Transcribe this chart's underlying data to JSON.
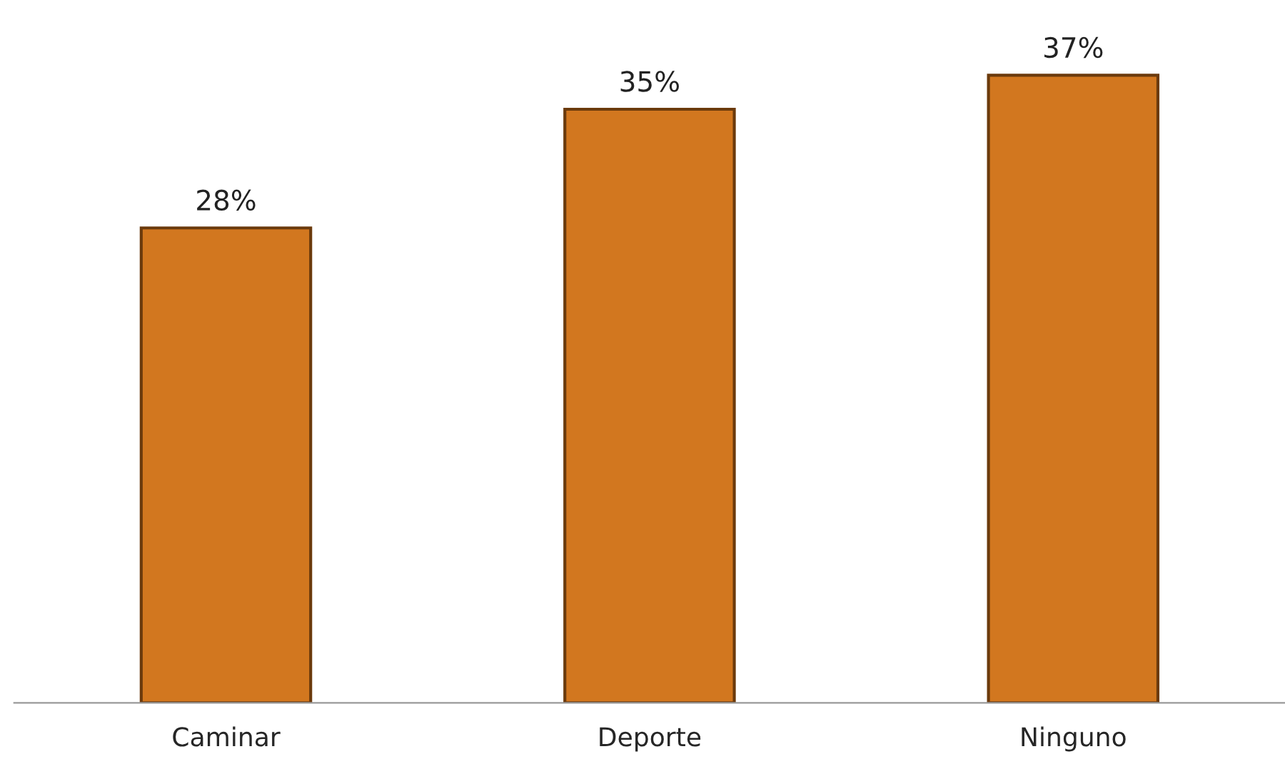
{
  "chart_data": {
    "type": "bar",
    "categories": [
      "Caminar",
      "Deporte",
      "Ninguno"
    ],
    "values": [
      28,
      35,
      37
    ],
    "value_labels": [
      "28%",
      "35%",
      "37%"
    ],
    "color": "#d2771f",
    "tick_labels": "x",
    "grid": false,
    "legend": false
  }
}
